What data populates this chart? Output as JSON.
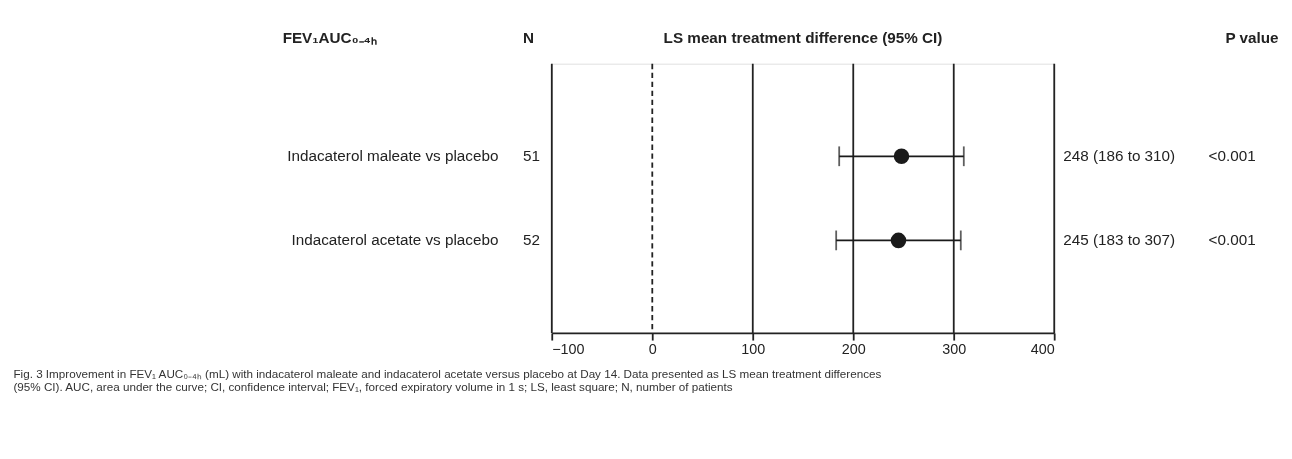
{
  "chart_data": {
    "type": "scatter",
    "orientation": "horizontal",
    "title": "FEV₁AUC₀₋₄ₕ",
    "xlabel": "LS mean treatment difference (95% CI)",
    "categories": [
      "Indacaterol maleate vs placebo",
      "Indacaterol acetate vs placebo"
    ],
    "values": [
      248,
      245
    ],
    "errors": [
      [
        186,
        310
      ],
      [
        183,
        307
      ]
    ],
    "value_labels": [
      "248 (186 to 310)",
      "245 (183 to 307)"
    ],
    "colors": [
      "#1a1a1a",
      "#1a1a1a"
    ],
    "marker": "circle",
    "xlim": [
      -100,
      400
    ],
    "xticks": [
      -100,
      0,
      100,
      200,
      300,
      400
    ],
    "grid": "x",
    "ref_lines": [
      {
        "axis": "x",
        "value": 0,
        "line_style": "dashed"
      }
    ],
    "annotations": [
      "N",
      "51",
      "52",
      "P value",
      "<0.001",
      "<0.001",
      "Fig. 3 Improvement in FEV₁ AUC₀₋₄ₕ (mL) with indacaterol maleate and indacaterol acetate versus placebo at Day 14. Data presented as LS mean treatment differences (95% CI). AUC, area under the curve; CI, confidence interval; FEV₁, forced expiratory volume in 1 s; LS, least square; N, number of patients"
    ]
  }
}
